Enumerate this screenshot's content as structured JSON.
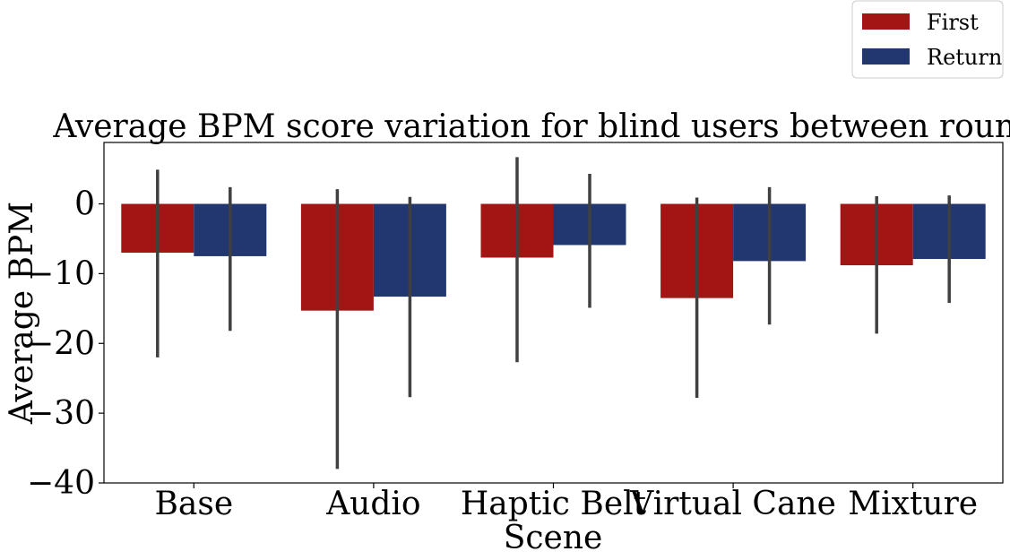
{
  "chart_data": {
    "type": "bar",
    "title": "Average BPM score variation for blind users between rounds",
    "xlabel": "Scene",
    "ylabel": "Average BPM",
    "categories": [
      "Base",
      "Audio",
      "Haptic Belt",
      "Virtual Cane",
      "Mixture"
    ],
    "series": [
      {
        "name": "First",
        "color": "#a31515",
        "values": [
          -7.0,
          -15.3,
          -7.7,
          -13.5,
          -8.8
        ],
        "err_low": [
          -22.0,
          -38.0,
          -22.7,
          -27.8,
          -18.6
        ],
        "err_high": [
          4.9,
          2.1,
          6.7,
          0.9,
          1.1
        ]
      },
      {
        "name": "Return",
        "color": "#223670",
        "values": [
          -7.5,
          -13.3,
          -5.9,
          -8.2,
          -7.9
        ],
        "err_low": [
          -18.2,
          -27.7,
          -14.9,
          -17.3,
          -14.2
        ],
        "err_high": [
          2.4,
          1.0,
          4.3,
          2.4,
          1.2
        ]
      }
    ],
    "ylim": [
      -40,
      8.8
    ],
    "yticks": [
      {
        "value": 0,
        "label": "0"
      },
      {
        "value": -10,
        "label": "−10"
      },
      {
        "value": -20,
        "label": "−20"
      },
      {
        "value": -30,
        "label": "−30"
      },
      {
        "value": -40,
        "label": "−40"
      }
    ],
    "grid": false,
    "legend_position": "top-right",
    "error_bar_color": "#404040"
  }
}
